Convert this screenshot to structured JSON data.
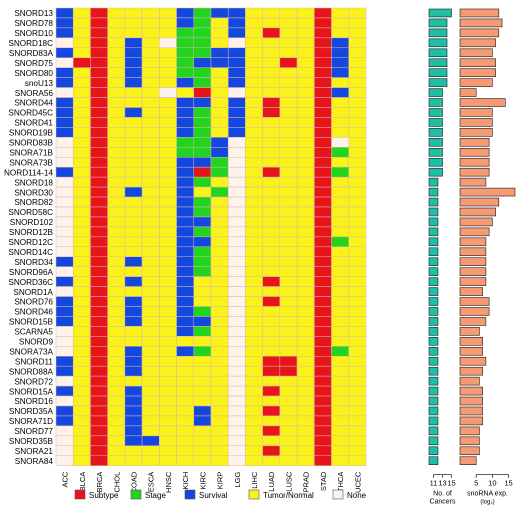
{
  "colors": {
    "Subtype": "#e8141c",
    "Stage": "#22d41e",
    "Survival": "#1446e0",
    "Tumor/Normal": "#fbf21a",
    "None": "#fdf3ea",
    "grid": "#d9b8a8",
    "bar_left": "#1fbfa6",
    "bar_right": "#f59a72"
  },
  "legend": [
    {
      "key": "S",
      "label": "Subtype",
      "color_key": "Subtype"
    },
    {
      "key": "G",
      "label": "Stage",
      "color_key": "Stage"
    },
    {
      "key": "V",
      "label": "Survival",
      "color_key": "Survival"
    },
    {
      "key": "Y",
      "label": "Tumor/Normal",
      "color_key": "Tumor/Normal"
    },
    {
      "key": "N",
      "label": "None",
      "color_key": "None"
    }
  ],
  "chart_data": [
    {
      "type": "heatmap",
      "rows": [
        "SNORD13",
        "SNORD78",
        "SNORD10",
        "SNORD18C",
        "SNORD83A",
        "SNORD75",
        "SNORD80",
        "snoU13",
        "SNORA56",
        "SNORD44",
        "SNORD45C",
        "SNORD41",
        "SNORD19B",
        "SNORD83B",
        "SNORA71B",
        "SNORA73B",
        "NORD114-14",
        "SNORD18",
        "SNORD30",
        "SNORD82",
        "SNORD58C",
        "SNORD102",
        "SNORD12B",
        "SNORD12C",
        "SNORD14C",
        "SNORD34",
        "SNORD96A",
        "SNORD36C",
        "SNORD1A",
        "SNORD76",
        "SNORD46",
        "SNORD15B",
        "SCARNA5",
        "SNORD9",
        "SNORA73A",
        "SNORD11",
        "SNORD88A",
        "SNORD72",
        "SNORD15A",
        "SNORD16",
        "SNORD35A",
        "SNORA71D",
        "SNORD77",
        "SNORD35B",
        "SNORA21",
        "SNORA84"
      ],
      "columns": [
        "ACC",
        "BLCA",
        "BRCA",
        "CHOL",
        "COAD",
        "ESCA",
        "HNSC",
        "KICH",
        "KIRC",
        "KIRP",
        "LGG",
        "LIHC",
        "LUAD",
        "LUSC",
        "PRAD",
        "STAD",
        "THCA",
        "UCEC"
      ],
      "legend_codes": {
        "S": "Subtype",
        "G": "Stage",
        "V": "Survival",
        "Y": "Tumor/Normal",
        "N": "None"
      },
      "cells": [
        "VYSYYYYVGVVYYYYSYY",
        "VYSYYYYVGYVYYYYSYY",
        "VYSYYYYGGYVYSYYSYY",
        "NYSYVYNGGYNYYYYSVY",
        "VYSYVYYGGVVYYYYSVY",
        "NSSYVYYGVVVYYSYSVY",
        "VYSYVYYGGYVYYYYSVY",
        "VYSYVYYVGYVYYYYSYY",
        "NYSYYYNYSYNYYYYSVY",
        "VYSYYYYVVYVYSYYSYY",
        "VYSYVYYVGYVYSYYSYY",
        "VYSYYYYVGYVYYYYSYY",
        "VYSYYYYVGYVYYYYSYY",
        "NYSYYYYGGVNYYYYSNY",
        "NYSYYYYGGVNYYYYSGY",
        "NYSYYYYVVGNYYYYSYY",
        "VYSYYYYVSGNYSYYSGY",
        "NYSYYYYVGYNYYYYSYY",
        "NYSYVYYVYGNYYYYSYY",
        "NYSYYYYVGYNYYYYSYY",
        "NYSYYYYVGYNYYYYSYY",
        "NYSYYYYVVYNYYYYSYY",
        "NYSYYYYVGYNYYYYSYY",
        "NYSYYYYVVYNYYYYSGY",
        "NYSYYYYVGYNYYYYSYY",
        "VYSYVYYVGYNYYYYSYY",
        "NYSYYYYVGYNYYYYSYY",
        "VYSYVYYVYYNYSYYSYY",
        "NYSYYYYVYYNYYYYSYY",
        "VYSYVYYVYYNYSYYSYY",
        "VYSYVYYVGYNYYYYSYY",
        "VYSYVYYVVYNYYYYSYY",
        "NYSYYYYVGYNYYYYSYY",
        "NYSYYYYYYYNYYYYSYY",
        "NYSYVYYVGYNYYYYSGY",
        "VYSYVYYYYYNYSSYSYY",
        "VYSYVYYYYYNYSSYSYY",
        "NYSYYYYYYYNYYYYSYY",
        "VYSYVYYYYYNYSYYSYY",
        "NYSYVYYYYYNYYYYSYY",
        "VYSYVYYYVYNYSYYSYY",
        "VYSYVYYYVYNYYYYSYY",
        "NYSYVYYYYYNYSYYSYY",
        "NYSYVVYYYYNYYYYSYY",
        "NYSYYYYYYYNYSYYSYY",
        "NYSYYYYYYYNYYYYSYY"
      ]
    },
    {
      "type": "bar",
      "orientation": "horizontal",
      "categories_ref": "heatmap rows",
      "xlabel": "No. of Cancers",
      "xticks": [
        11,
        13,
        15
      ],
      "xlim": [
        10,
        16
      ],
      "values": [
        15,
        14,
        14,
        14,
        14,
        14,
        14,
        14,
        13,
        13,
        13,
        13,
        13,
        13,
        13,
        13,
        13,
        12,
        12,
        12,
        12,
        12,
        12,
        12,
        12,
        12,
        12,
        12,
        12,
        12,
        12,
        12,
        12,
        12,
        12,
        12,
        12,
        12,
        12,
        12,
        12,
        12,
        12,
        12,
        12,
        12
      ]
    },
    {
      "type": "bar",
      "orientation": "horizontal",
      "categories_ref": "heatmap rows",
      "xlabel": "snoRNA exp.",
      "xlabel_sub": "(log₂)",
      "xticks": [
        5,
        10,
        15
      ],
      "xlim": [
        0,
        17
      ],
      "values": [
        12,
        13,
        12,
        11,
        10,
        11,
        11,
        10,
        5,
        14,
        10,
        10,
        10,
        9,
        9,
        9,
        9,
        8,
        17,
        12,
        11,
        10,
        9,
        8,
        8,
        8,
        8,
        8,
        7,
        9,
        9,
        8,
        6,
        7,
        7,
        8,
        7,
        6,
        7,
        7,
        7,
        7,
        6,
        6,
        6,
        5
      ]
    }
  ]
}
